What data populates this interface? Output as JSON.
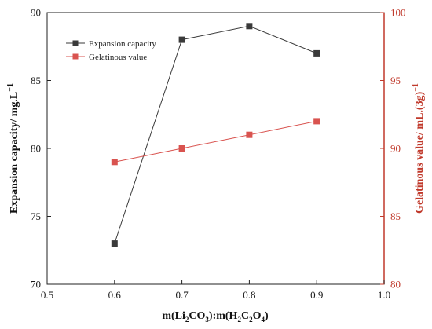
{
  "chart_data": {
    "type": "line",
    "x": [
      0.6,
      0.7,
      0.8,
      0.9
    ],
    "xlim": [
      0.5,
      1.0
    ],
    "x_ticks": [
      "0.5",
      "0.6",
      "0.7",
      "0.8",
      "0.9",
      "1.0"
    ],
    "x_tick_values": [
      0.5,
      0.6,
      0.7,
      0.8,
      0.9,
      1.0
    ],
    "xlabel": {
      "prefix": "m(Li",
      "sub1": "2",
      "mid1": "CO",
      "sub2": "3",
      "mid2": "):m(H",
      "sub3": "2",
      "mid3": "C",
      "sub4": "2",
      "mid4": "O",
      "sub5": "4",
      "suffix": ")"
    },
    "y_left": {
      "label": "Expansion capacity/ mg.L",
      "label_sup": "−1",
      "ylim": [
        70,
        90
      ],
      "ticks": [
        "70",
        "75",
        "80",
        "85",
        "90"
      ],
      "tick_values": [
        70,
        75,
        80,
        85,
        90
      ],
      "color": "#111111"
    },
    "y_right": {
      "label": "Gelatinous value/ mL.(3g)",
      "label_sup": "−1",
      "ylim": [
        80,
        100
      ],
      "ticks": [
        "80",
        "85",
        "90",
        "95",
        "100"
      ],
      "tick_values": [
        80,
        85,
        90,
        95,
        100
      ],
      "color": "#c0392b"
    },
    "series": [
      {
        "name": "Expansion capacity",
        "axis": "left",
        "values": [
          73,
          88,
          89,
          87
        ],
        "color": "#3a3a3a",
        "marker": "square"
      },
      {
        "name": "Gelatinous value",
        "axis": "right",
        "values": [
          89,
          90,
          91,
          92
        ],
        "color": "#d9534f",
        "marker": "square"
      }
    ],
    "legend_position": "top-left",
    "grid": false
  }
}
